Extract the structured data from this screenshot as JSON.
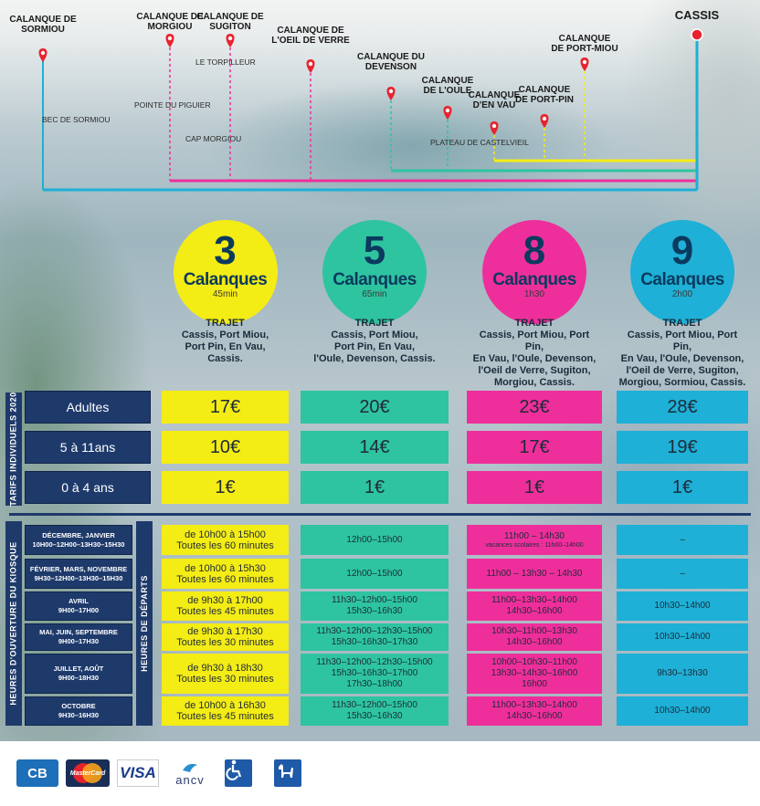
{
  "map": {
    "places": [
      {
        "id": "sormiou",
        "lines": [
          "CALANQUE DE",
          "SORMIOU"
        ]
      },
      {
        "id": "morgiou",
        "lines": [
          "CALANQUE DE",
          "MORGIOU"
        ]
      },
      {
        "id": "sugiton",
        "lines": [
          "CALANQUE DE",
          "SUGITON"
        ]
      },
      {
        "id": "oeil",
        "lines": [
          "CALANQUE DE",
          "L'OEIL DE VERRE"
        ]
      },
      {
        "id": "devenson",
        "lines": [
          "CALANQUE DU",
          "DEVENSON"
        ]
      },
      {
        "id": "oule",
        "lines": [
          "CALANQUE",
          "DE L'OULE"
        ]
      },
      {
        "id": "envau",
        "lines": [
          "CALANQUE",
          "D'EN VAU"
        ]
      },
      {
        "id": "portpin",
        "lines": [
          "CALANQUE",
          "DE PORT-PIN"
        ]
      },
      {
        "id": "portmiou",
        "lines": [
          "CALANQUE",
          "DE PORT-MIOU"
        ]
      },
      {
        "id": "cassis",
        "lines": [
          "CASSIS"
        ]
      }
    ],
    "points": {
      "torpilleur": "LE TORPILLEUR",
      "sormiou_bec": "BEC DE SORMIOU",
      "piguier": "POINTE DU PIGUIER",
      "morgiou_cap": "CAP MORGIOU",
      "castelvieil": "PLATEAU DE CASTELVIEIL"
    }
  },
  "tours": [
    {
      "num": "3",
      "label": "Calanques",
      "duration": "45min",
      "color": "#f4ec15",
      "trajet_head": "TRAJET",
      "trajet_lines": [
        "Cassis, Port Miou,",
        "Port Pin, En Vau,",
        "Cassis."
      ],
      "prices": [
        "17€",
        "10€",
        "1€"
      ],
      "schedules": [
        [
          "de 10h00 à 15h00",
          "Toutes les 60 minutes"
        ],
        [
          "de 10h00 à 15h30",
          "Toutes les 60 minutes"
        ],
        [
          "de 9h30 à 17h00",
          "Toutes les 45 minutes"
        ],
        [
          "de 9h30 à 17h30",
          "Toutes les 30 minutes"
        ],
        [
          "de 9h30 à 18h30",
          "Toutes les 30 minutes"
        ],
        [
          "de 10h00 à 16h30",
          "Toutes les 45 minutes"
        ]
      ]
    },
    {
      "num": "5",
      "label": "Calanques",
      "duration": "65min",
      "color": "#2ec4a0",
      "trajet_head": "TRAJET",
      "trajet_lines": [
        "Cassis, Port Miou,",
        "Port Pin, En Vau,",
        "l'Oule, Devenson, Cassis."
      ],
      "prices": [
        "20€",
        "14€",
        "1€"
      ],
      "schedules": [
        [
          "12h00–15h00"
        ],
        [
          "12h00–15h00"
        ],
        [
          "11h30–12h00–15h00",
          "15h30–16h30"
        ],
        [
          "11h30–12h00–12h30–15h00",
          "15h30–16h30–17h30"
        ],
        [
          "11h30–12h00–12h30–15h00",
          "15h30–16h30–17h00",
          "17h30–18h00"
        ],
        [
          "11h30–12h00–15h00",
          "15h30–16h30"
        ]
      ]
    },
    {
      "num": "8",
      "label": "Calanques",
      "duration": "1h30",
      "color": "#ee2f9b",
      "trajet_head": "TRAJET",
      "trajet_lines": [
        "Cassis, Port Miou, Port Pin,",
        "En Vau, l'Oule, Devenson,",
        "l'Oeil de Verre, Sugiton,",
        "Morgiou, Cassis."
      ],
      "prices": [
        "23€",
        "17€",
        "1€"
      ],
      "schedules": [
        [
          "11h00 – 14h30",
          "vacances scolaires : 11h00–14h00"
        ],
        [
          "11h00 – 13h30 – 14h30"
        ],
        [
          "11h00–13h30–14h00",
          "14h30–16h00"
        ],
        [
          "10h30–11h00–13h30",
          "14h30–16h00"
        ],
        [
          "10h00–10h30–11h00",
          "13h30–14h30–16h00",
          "16h00"
        ],
        [
          "11h00–13h30–14h00",
          "14h30–16h00"
        ]
      ]
    },
    {
      "num": "9",
      "label": "Calanques",
      "duration": "2h00",
      "color": "#1eb0d6",
      "trajet_head": "TRAJET",
      "trajet_lines": [
        "Cassis, Port Miou, Port Pin,",
        "En Vau, l'Oule, Devenson,",
        "l'Oeil de Verre, Sugiton,",
        "Morgiou, Sormiou, Cassis."
      ],
      "prices": [
        "28€",
        "19€",
        "1€"
      ],
      "schedules": [
        [
          "–"
        ],
        [
          "–"
        ],
        [
          "10h30–14h00"
        ],
        [
          "10h30–14h00"
        ],
        [
          "9h30–13h30"
        ],
        [
          "10h30–14h00"
        ]
      ]
    }
  ],
  "tarifs": {
    "vertical_label": "TARIFS INDIVIDUELS 2020",
    "rows": [
      "Adultes",
      "5 à 11ans",
      "0 à 4 ans"
    ]
  },
  "schedule": {
    "vertical_label_kiosque": "HEURES D'OUVERTURE DU KIOSQUE",
    "vertical_label_departs": "HEURES DE DÉPARTS",
    "rows": [
      {
        "months": "DÉCEMBRE, JANVIER",
        "hours": "10H00–12H00–13H30–15H30"
      },
      {
        "months": "FÉVRIER, MARS, NOVEMBRE",
        "hours": "9H30–12H00–13H30–15H30"
      },
      {
        "months": "AVRIL",
        "hours": "9H00–17H00"
      },
      {
        "months": "MAI, JUIN, SEPTEMBRE",
        "hours": "9H00–17H30"
      },
      {
        "months": "JUILLET, AOÛT",
        "hours": "9H00–18H30"
      },
      {
        "months": "OCTOBRE",
        "hours": "9H30–16H30"
      }
    ]
  },
  "footer": {
    "cb": "CB",
    "mastercard": "MasterCard",
    "visa": "VISA",
    "ancv": "ancv",
    "icons": [
      "wheelchair-icon",
      "dog-icon"
    ]
  }
}
